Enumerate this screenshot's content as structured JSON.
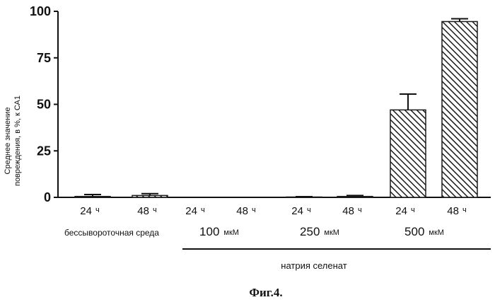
{
  "chart_data": {
    "type": "bar",
    "ylabel": [
      "Среднее значение",
      "повреждения, в %, к СА1"
    ],
    "ylim": [
      0,
      100
    ],
    "yticks": [
      0,
      25,
      50,
      75,
      100
    ],
    "ytick_labels": [
      "0",
      "25",
      "50",
      "75",
      "100"
    ],
    "categories": [
      {
        "main": "24",
        "unit": "ч"
      },
      {
        "main": "48",
        "unit": "ч"
      },
      {
        "main": "24",
        "unit": "ч"
      },
      {
        "main": "48",
        "unit": "ч"
      },
      {
        "main": "24",
        "unit": "ч"
      },
      {
        "main": "48",
        "unit": "ч"
      },
      {
        "main": "24",
        "unit": "ч"
      },
      {
        "main": "48",
        "unit": "ч"
      }
    ],
    "values": [
      0.5,
      1.0,
      0,
      0,
      0.2,
      0.5,
      47,
      94.5
    ],
    "errors": [
      1.0,
      1.0,
      0,
      0,
      0.2,
      0.5,
      8.5,
      1.5
    ],
    "groups": [
      {
        "main": "бессывороточная среда",
        "unit": ""
      },
      {
        "main": "100",
        "unit": "мкМ"
      },
      {
        "main": "250",
        "unit": "мкМ"
      },
      {
        "main": "500",
        "unit": "мкМ"
      }
    ],
    "bracket_label": "натрия селенат",
    "grid": false,
    "bar_fill": "hatched",
    "bar_color": "#1a1a1a"
  },
  "caption": "Фиг.4."
}
